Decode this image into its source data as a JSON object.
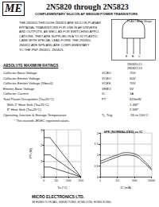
{
  "header": {
    "logo": "ME",
    "title": "2N5820 through 2N5823",
    "subtitle": "COMPLEMENTARY SILICON AF MEDIUM POWER TRANSISTORS"
  },
  "description": [
    "THE 2N5820 THROUGH 2N5823 ARE SILICON PLANAR",
    "EPITAXIAL TRANSISTORS FOR USE IN AF DRIVERS",
    "AND OUTPUTS, AS WELL AS FOR SWITCHING APPLI-",
    "CATIONS. THEY ARE SUPPLIED IN A TO-92 PLASTIC",
    "CASE WITH SPECIAL LEAD FORM. THE 2N5820,",
    "2N5822 ARE NPN AND ARE COMPLEMENTARY",
    "TO THE PNP 2N5821, 2N5823."
  ],
  "package": {
    "label": "PLAST Body Shape",
    "pins": [
      "E",
      "B",
      "C"
    ]
  },
  "ratings": {
    "title": "ABSOLUTE MAXIMUM RATINGS",
    "columns": [
      "2N5820,21",
      "2N5822,23"
    ],
    "rows": [
      [
        "Collector-Base Voltage",
        "VCBO",
        "70V"
      ],
      [
        "Collector-Emitter Voltage",
        "VCEO",
        "50V"
      ],
      [
        "Collector-Emitter Voltage (Vbe=0)",
        "VCES",
        "70V"
      ],
      [
        "Emitter-Base Voltage",
        "VEBO",
        "5V"
      ],
      [
        "Collector Current",
        "IC",
        "1A"
      ],
      [
        "Total Power Dissipation (Ta=25°C)",
        "PT",
        "625mW"
      ],
      [
        "    With 2\" Heat Sink (Ta=25°C)",
        "",
        "1.4W*"
      ],
      [
        "    8\" Heat Sink (Ta=25°C)",
        "",
        "2.5W*"
      ],
      [
        "Operating Junction & Storage Temperature",
        "Tj, Tstg",
        "-55 to 150°C"
      ]
    ],
    "note": "* This exceeds JEDEC registered values."
  },
  "footer": {
    "company": "MICRO ELECTRONICS LTD.",
    "address": "38 HUNG TO ROAD, KWUN TONG, KOWLOON, HONG KONG."
  },
  "chart_data": [
    {
      "type": "line",
      "x_label": "Ta (°C)",
      "y_label": "PT (W)",
      "x": [
        0,
        25,
        150
      ],
      "series": [
        {
          "color": "#111111",
          "values": [
            2.5,
            2.5,
            0
          ]
        },
        {
          "color": "#111111",
          "values": [
            1.4,
            1.4,
            0
          ]
        },
        {
          "color": "#111111",
          "values": [
            0.625,
            0.625,
            0
          ]
        }
      ],
      "xlim": [
        0,
        150
      ],
      "xticks": [
        0,
        50,
        100,
        150
      ],
      "ylim": [
        0,
        3
      ],
      "yticks": [
        0,
        1,
        2,
        3
      ],
      "grid": true
    },
    {
      "type": "line",
      "title": "hFE (NORMALIZED) vs IC",
      "x_label": "IC (mA)",
      "log": "x",
      "x": [
        1,
        3,
        10,
        30,
        100,
        300,
        1000
      ],
      "series": [
        {
          "color": "#111111",
          "values": [
            0.7,
            0.85,
            1,
            1.1,
            1.05,
            0.8,
            0.35
          ]
        },
        {
          "color": "#111111",
          "values": [
            0.6,
            0.75,
            0.9,
            1,
            0.95,
            0.7,
            0.3
          ]
        }
      ],
      "xlim": [
        1,
        1000
      ],
      "xticks": [
        1,
        10,
        100,
        1000
      ],
      "ylim": [
        0,
        2
      ],
      "yticks": [
        0,
        0.5,
        1,
        1.5,
        2
      ],
      "grid": true
    }
  ]
}
